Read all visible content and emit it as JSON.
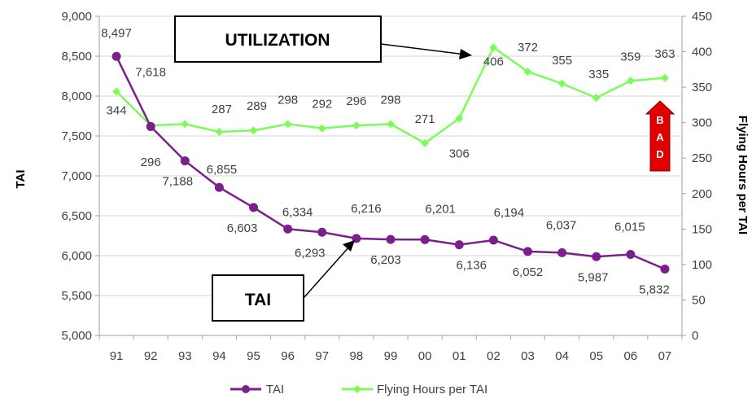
{
  "chart_data": {
    "type": "line",
    "categories": [
      "91",
      "92",
      "93",
      "94",
      "95",
      "96",
      "97",
      "98",
      "99",
      "00",
      "01",
      "02",
      "03",
      "04",
      "05",
      "06",
      "07"
    ],
    "series": [
      {
        "name": "TAI",
        "axis": "left",
        "color": "#7B1F8C",
        "values": [
          8497,
          7618,
          7188,
          6855,
          6603,
          6334,
          6293,
          6216,
          6203,
          6201,
          6136,
          6194,
          6052,
          6037,
          5987,
          6015,
          5832
        ],
        "labels": [
          "8,497",
          "7,618",
          "7,188",
          "6,855",
          "6,603",
          "6,334",
          "6,293",
          "6,216",
          "6,203",
          "6,201",
          "6,136",
          "6,194",
          "6,052",
          "6,037",
          "5,987",
          "6,015",
          "5,832"
        ]
      },
      {
        "name": "Flying Hours per TAI",
        "axis": "right",
        "color": "#7CFC5A",
        "values": [
          344,
          296,
          298,
          287,
          289,
          298,
          292,
          296,
          298,
          271,
          306,
          406,
          372,
          355,
          335,
          359,
          363
        ],
        "labels": [
          "344",
          "296",
          "298",
          "287",
          "289",
          "298",
          "292",
          "296",
          "298",
          "271",
          "306",
          "406",
          "372",
          "355",
          "335",
          "359",
          "363"
        ]
      }
    ],
    "ylabel": "TAI",
    "y2label": "Flying Hours per TAI",
    "ylim": [
      5000,
      9000
    ],
    "y2lim": [
      0,
      450
    ],
    "yticks": [
      "5,000",
      "5,500",
      "6,000",
      "6,500",
      "7,000",
      "7,500",
      "8,000",
      "8,500",
      "9,000"
    ],
    "y2ticks": [
      "0",
      "50",
      "100",
      "150",
      "200",
      "250",
      "300",
      "350",
      "400",
      "450"
    ],
    "grid": true,
    "legend_position": "bottom",
    "annotations": {
      "utilization": "UTILIZATION",
      "tai": "TAI",
      "bad": [
        "B",
        "A",
        "D"
      ]
    }
  }
}
